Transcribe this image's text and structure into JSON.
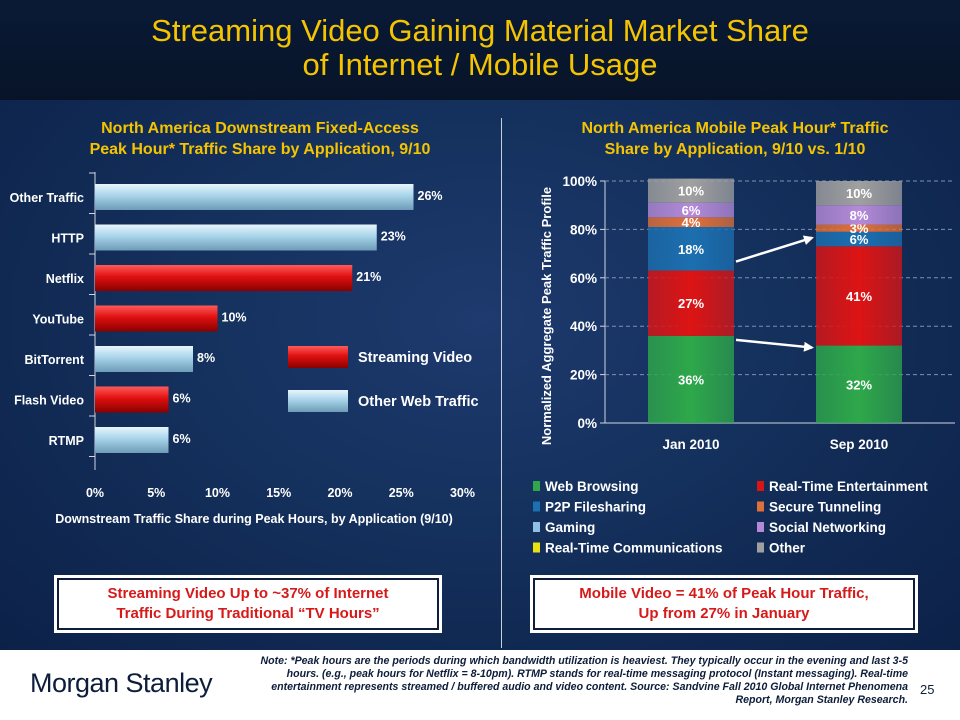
{
  "slide": {
    "title": "Streaming Video Gaining Material Market Share\nof Internet / Mobile Usage",
    "left_chart_title": "North America Downstream Fixed-Access\nPeak Hour* Traffic Share by Application, 9/10",
    "right_chart_title": "North America Mobile Peak Hour* Traffic\nShare by Application, 9/10 vs. 1/10",
    "left_callout": "Streaming Video Up to ~37% of Internet\nTraffic During Traditional “TV Hours”",
    "right_callout": "Mobile Video = 41% of Peak Hour Traffic,\nUp from 27% in January",
    "logo": "Morgan Stanley",
    "note": "Note: *Peak hours are the periods during which bandwidth utilization is heaviest. They typically occur in the evening and last 3-5 hours. (e.g., peak hours for Netflix = 8-10pm). RTMP stands for real-time messaging protocol (Instant messaging). Real-time entertainment represents streamed / buffered audio and video content. Source: Sandvine Fall 2010 Global Internet Phenomena Report, Morgan Stanley Research.",
    "page_number": "25"
  },
  "colors": {
    "streaming": "#e01010",
    "other_web": "#a8d4ea",
    "web_browsing": "#2ea84a",
    "real_time_entertainment": "#dd1414",
    "p2p": "#1c6fb0",
    "secure_tunneling": "#e0703a",
    "gaming": "#8fc1e6",
    "social_networking": "#b48ad8",
    "real_time_comm": "#e8e010",
    "other": "#a0a0a0",
    "title_yellow": "#f5c400"
  },
  "chart_data": [
    {
      "type": "bar",
      "orientation": "horizontal",
      "categories": [
        "Other Traffic",
        "HTTP",
        "Netflix",
        "YouTube",
        "BitTorrent",
        "Flash Video",
        "RTMP"
      ],
      "values": [
        26,
        23,
        21,
        10,
        8,
        6,
        6
      ],
      "value_labels": [
        "26%",
        "23%",
        "21%",
        "10%",
        "8%",
        "6%",
        "6%"
      ],
      "groups": [
        "Other Web Traffic",
        "Other Web Traffic",
        "Streaming Video",
        "Streaming Video",
        "Other Web Traffic",
        "Streaming Video",
        "Other Web Traffic"
      ],
      "legend": [
        {
          "name": "Streaming Video",
          "color": "#e01010"
        },
        {
          "name": "Other Web Traffic",
          "color": "#a8d4ea"
        }
      ],
      "xlim": [
        0,
        30
      ],
      "x_ticks": [
        0,
        5,
        10,
        15,
        20,
        25,
        30
      ],
      "x_tick_labels": [
        "0%",
        "5%",
        "10%",
        "15%",
        "20%",
        "25%",
        "30%"
      ],
      "xlabel": "Downstream Traffic Share during Peak Hours, by Application (9/10)",
      "legend_placement": "right"
    },
    {
      "type": "bar",
      "stacked": true,
      "categories": [
        "Jan 2010",
        "Sep 2010"
      ],
      "series": [
        {
          "name": "Web Browsing",
          "values": [
            36,
            32
          ],
          "labels": [
            "36%",
            "32%"
          ]
        },
        {
          "name": "Real-Time Entertainment",
          "values": [
            27,
            41
          ],
          "labels": [
            "27%",
            "41%"
          ]
        },
        {
          "name": "P2P Filesharing",
          "values": [
            18,
            6
          ],
          "labels": [
            "18%",
            "6%"
          ]
        },
        {
          "name": "Secure Tunneling",
          "values": [
            4,
            3
          ],
          "labels": [
            "4%",
            "3%"
          ]
        },
        {
          "name": "Social Networking",
          "values": [
            6,
            8
          ],
          "labels": [
            "6%",
            "8%"
          ]
        },
        {
          "name": "Other",
          "values": [
            10,
            10
          ],
          "labels": [
            "10%",
            "10%"
          ]
        }
      ],
      "legend_items": [
        "Web Browsing",
        "Real-Time Entertainment",
        "P2P Filesharing",
        "Secure Tunneling",
        "Gaming",
        "Social Networking",
        "Real-Time Communications",
        "Other"
      ],
      "ylabel": "Normalized Aggregate Peak Traffic Profile",
      "ylim": [
        0,
        100
      ],
      "y_ticks": [
        0,
        20,
        40,
        60,
        80,
        100
      ],
      "y_tick_labels": [
        "0%",
        "20%",
        "40%",
        "60%",
        "80%",
        "100%"
      ],
      "grid": true,
      "legend_placement": "bottom"
    }
  ]
}
